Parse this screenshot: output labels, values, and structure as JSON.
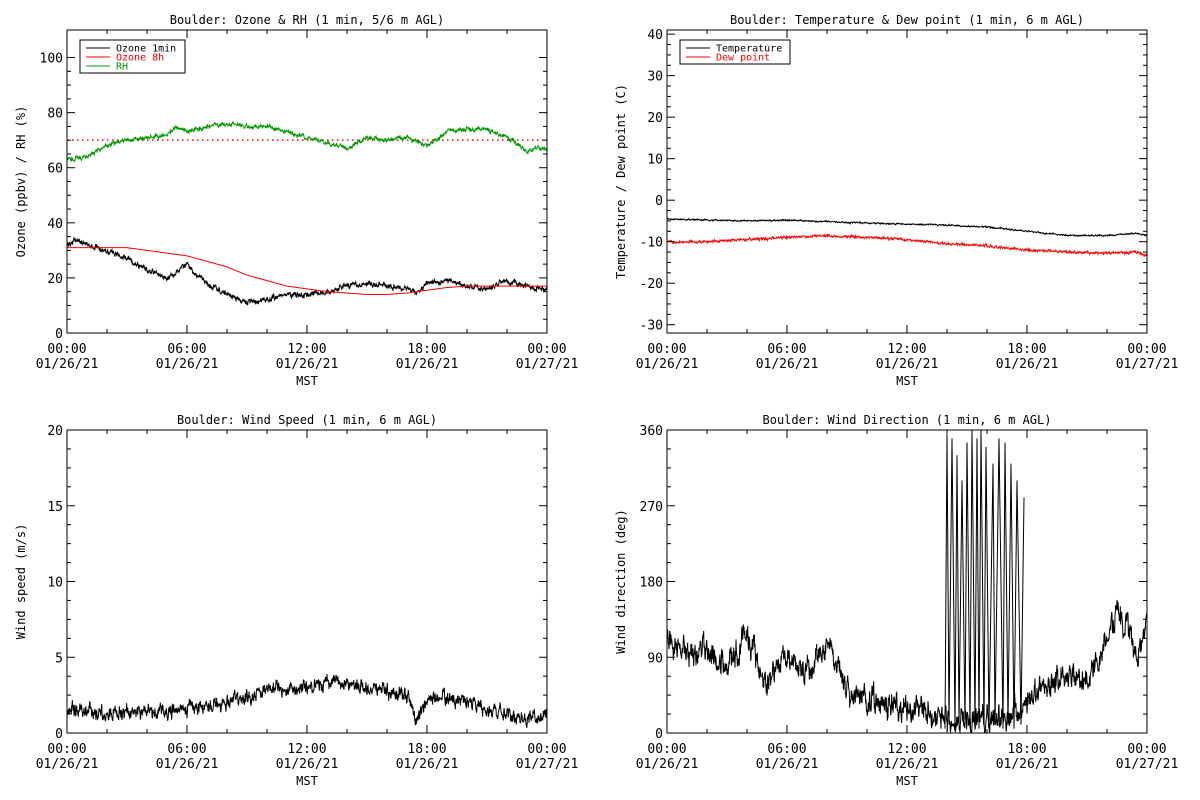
{
  "figure": {
    "background": "#ffffff",
    "axis_color": "#000000"
  },
  "chart_data": [
    {
      "id": "ozone_rh",
      "type": "line",
      "title": "Boulder: Ozone & RH (1 min, 5/6 m AGL)",
      "ylabel": "Ozone (ppbv) / RH (%)",
      "xlabel": "MST",
      "xlim": [
        0,
        24
      ],
      "ylim": [
        0,
        110
      ],
      "y_ticks": [
        0,
        20,
        40,
        60,
        80,
        100
      ],
      "x_tick_labels": [
        {
          "x": 0,
          "time": "00:00",
          "date": "01/26/21"
        },
        {
          "x": 6,
          "time": "06:00",
          "date": "01/26/21"
        },
        {
          "x": 12,
          "time": "12:00",
          "date": "01/26/21"
        },
        {
          "x": 18,
          "time": "18:00",
          "date": "01/26/21"
        },
        {
          "x": 24,
          "time": "00:00",
          "date": "01/27/21"
        }
      ],
      "legend": {
        "placement": "top-left",
        "entries": [
          {
            "label": "Ozone 1min",
            "color": "#000000"
          },
          {
            "label": "Ozone 8h",
            "color": "#ff0000"
          },
          {
            "label": "RH",
            "color": "#009900"
          }
        ]
      },
      "reference_lines": [
        {
          "y": 70,
          "color": "#ff0000",
          "style": "dotted"
        }
      ],
      "series": [
        {
          "name": "Ozone 1min",
          "color": "#000000",
          "noise": 1.2,
          "x": [
            0,
            0.5,
            1,
            2,
            3,
            4,
            5,
            5.5,
            6,
            6.5,
            7,
            8,
            9,
            10,
            11,
            12,
            13,
            14,
            15,
            16,
            17,
            17.5,
            18,
            19,
            20,
            21,
            22,
            23,
            24
          ],
          "y": [
            32,
            34,
            32,
            30,
            27,
            23,
            20,
            22,
            25,
            21,
            18,
            14,
            11,
            12,
            14,
            14,
            15,
            17,
            18,
            17,
            16,
            14,
            18,
            19,
            17,
            16,
            19,
            17,
            16
          ]
        },
        {
          "name": "Ozone 8h",
          "color": "#ff0000",
          "noise": 0,
          "x": [
            0,
            1,
            2,
            3,
            4,
            5,
            6,
            7,
            8,
            9,
            10,
            11,
            12,
            13,
            14,
            15,
            16,
            17,
            18,
            19,
            20,
            21,
            22,
            23,
            24
          ],
          "y": [
            31,
            31,
            31,
            31,
            30,
            29,
            28,
            26,
            24,
            21,
            19,
            17,
            16,
            15,
            14.5,
            14,
            14,
            14.5,
            15.5,
            16.5,
            17,
            17,
            17,
            17,
            17
          ]
        },
        {
          "name": "RH",
          "color": "#009900",
          "noise": 0.9,
          "x": [
            0,
            1,
            2,
            3,
            4,
            5,
            5.5,
            6,
            7,
            8,
            9,
            10,
            11,
            12,
            13,
            14,
            15,
            16,
            17,
            18,
            19,
            20,
            21,
            22,
            23,
            23.5,
            24
          ],
          "y": [
            63,
            64,
            68,
            70,
            71,
            72,
            75,
            73,
            75,
            76,
            75,
            75,
            73,
            71,
            69,
            67,
            71,
            70,
            71,
            68,
            73,
            74,
            74,
            71,
            66,
            67,
            67
          ]
        }
      ]
    },
    {
      "id": "temp_dew",
      "type": "line",
      "title": "Boulder: Temperature & Dew point (1 min, 6 m AGL)",
      "ylabel": "Temperature / Dew point (C)",
      "xlabel": "MST",
      "xlim": [
        0,
        24
      ],
      "ylim": [
        -32,
        41
      ],
      "y_ticks": [
        -30,
        -20,
        -10,
        0,
        10,
        20,
        30,
        40
      ],
      "x_tick_labels": [
        {
          "x": 0,
          "time": "00:00",
          "date": "01/26/21"
        },
        {
          "x": 6,
          "time": "06:00",
          "date": "01/26/21"
        },
        {
          "x": 12,
          "time": "12:00",
          "date": "01/26/21"
        },
        {
          "x": 18,
          "time": "18:00",
          "date": "01/26/21"
        },
        {
          "x": 24,
          "time": "00:00",
          "date": "01/27/21"
        }
      ],
      "legend": {
        "placement": "top-left",
        "entries": [
          {
            "label": "Temperature",
            "color": "#000000"
          },
          {
            "label": "Dew point",
            "color": "#ff0000"
          }
        ]
      },
      "reference_lines": [],
      "series": [
        {
          "name": "Temperature",
          "color": "#000000",
          "noise": 0.2,
          "x": [
            0,
            2,
            4,
            6,
            8,
            10,
            12,
            14,
            16,
            18,
            20,
            22,
            23.5,
            24
          ],
          "y": [
            -4.5,
            -4.8,
            -5.0,
            -4.8,
            -5.2,
            -5.5,
            -5.8,
            -6.0,
            -6.5,
            -7.5,
            -8.5,
            -8.5,
            -8.0,
            -8.5
          ]
        },
        {
          "name": "Dew point",
          "color": "#ff0000",
          "noise": 0.35,
          "x": [
            0,
            2,
            4,
            6,
            8,
            10,
            12,
            14,
            16,
            18,
            20,
            22,
            23.5,
            24
          ],
          "y": [
            -10,
            -10,
            -9.5,
            -9.0,
            -8.5,
            -9.0,
            -9.5,
            -10.5,
            -11.0,
            -12.0,
            -12.5,
            -12.8,
            -12.5,
            -13.5
          ]
        }
      ]
    },
    {
      "id": "wind_speed",
      "type": "line",
      "title": "Boulder: Wind Speed (1 min, 6 m AGL)",
      "ylabel": "Wind speed (m/s)",
      "xlabel": "MST",
      "xlim": [
        0,
        24
      ],
      "ylim": [
        0,
        20
      ],
      "y_ticks": [
        0,
        5,
        10,
        15,
        20
      ],
      "x_tick_labels": [
        {
          "x": 0,
          "time": "00:00",
          "date": "01/26/21"
        },
        {
          "x": 6,
          "time": "06:00",
          "date": "01/26/21"
        },
        {
          "x": 12,
          "time": "12:00",
          "date": "01/26/21"
        },
        {
          "x": 18,
          "time": "18:00",
          "date": "01/26/21"
        },
        {
          "x": 24,
          "time": "00:00",
          "date": "01/27/21"
        }
      ],
      "legend": null,
      "reference_lines": [],
      "series": [
        {
          "name": "",
          "color": "#000000",
          "noise": 0.55,
          "x": [
            0,
            2,
            4,
            6,
            7,
            8,
            9,
            10,
            11,
            12,
            13,
            14,
            15,
            16,
            17,
            17.5,
            18,
            19,
            20,
            21,
            22,
            23,
            24
          ],
          "y": [
            1.5,
            1.3,
            1.4,
            1.6,
            1.8,
            2.0,
            2.3,
            3.0,
            3.0,
            3.0,
            3.2,
            3.3,
            3.0,
            2.7,
            2.5,
            0.8,
            2.3,
            2.3,
            2.0,
            1.5,
            1.2,
            0.9,
            1.4
          ]
        }
      ]
    },
    {
      "id": "wind_dir",
      "type": "line",
      "title": "Boulder: Wind Direction (1 min, 6 m AGL)",
      "ylabel": "Wind direction (deg)",
      "xlabel": "MST",
      "xlim": [
        0,
        24
      ],
      "ylim": [
        0,
        360
      ],
      "y_ticks": [
        0,
        90,
        180,
        270,
        360
      ],
      "x_tick_labels": [
        {
          "x": 0,
          "time": "00:00",
          "date": "01/26/21"
        },
        {
          "x": 6,
          "time": "06:00",
          "date": "01/26/21"
        },
        {
          "x": 12,
          "time": "12:00",
          "date": "01/26/21"
        },
        {
          "x": 18,
          "time": "18:00",
          "date": "01/26/21"
        },
        {
          "x": 24,
          "time": "00:00",
          "date": "01/27/21"
        }
      ],
      "legend": null,
      "reference_lines": [],
      "series": [
        {
          "name": "",
          "color": "#000000",
          "noise": 18,
          "x": [
            0,
            1,
            2,
            3,
            4,
            5,
            6,
            7,
            8,
            9,
            10,
            11,
            12,
            13,
            14,
            15,
            16,
            17,
            18,
            19,
            20,
            21,
            22,
            22.5,
            23,
            23.5,
            24
          ],
          "y": [
            110,
            90,
            100,
            80,
            115,
            60,
            95,
            70,
            110,
            50,
            40,
            35,
            30,
            25,
            15,
            15,
            15,
            15,
            35,
            55,
            70,
            60,
            110,
            140,
            130,
            90,
            140
          ]
        },
        {
          "name": "",
          "color": "#000000",
          "noise": 0,
          "x": [
            13.9,
            14.0,
            14.1,
            14.25,
            14.4,
            14.5,
            14.6,
            14.75,
            14.9,
            15.0,
            15.15,
            15.25,
            15.4,
            15.5,
            15.6,
            15.7,
            15.85,
            15.95,
            16.1,
            16.3,
            16.4,
            16.6,
            16.8,
            16.9,
            17.05,
            17.2,
            17.35,
            17.5,
            17.7,
            17.85
          ],
          "y": [
            5,
            355,
            10,
            350,
            5,
            330,
            10,
            300,
            8,
            345,
            5,
            360,
            10,
            350,
            5,
            360,
            8,
            340,
            5,
            320,
            10,
            350,
            5,
            345,
            10,
            320,
            5,
            300,
            10,
            280
          ]
        }
      ]
    }
  ]
}
